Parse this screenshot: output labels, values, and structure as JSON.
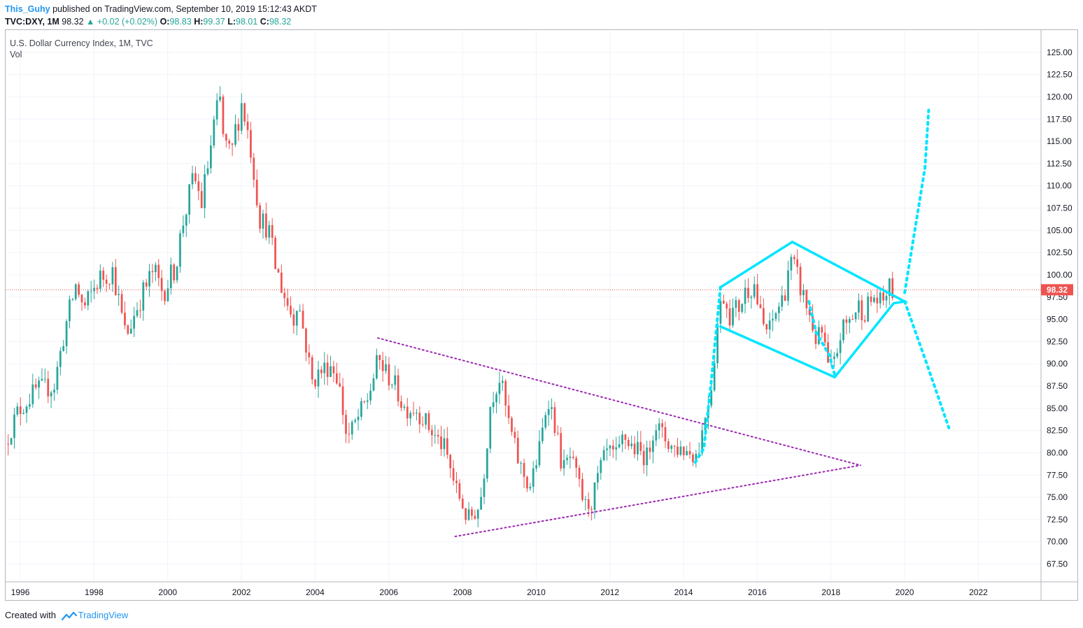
{
  "header": {
    "author": "This_Guhy",
    "published": "published on TradingView.com, September 10, 2019 15:12:43 AKDT",
    "symbol": "TVC:DXY, 1M",
    "price": "98.32",
    "change_arrow": "▲",
    "change": "+0.02 (+0.02%)",
    "o_label": "O:",
    "o_value": "98.83",
    "h_label": "H:",
    "h_value": "99.37",
    "l_label": "L:",
    "l_value": "98.01",
    "c_label": "C:",
    "c_value": "98.32"
  },
  "footer": {
    "created": "Created with",
    "brand": "TradingView"
  },
  "colors": {
    "up": "#26a69a",
    "down": "#ef5350",
    "pattern": "#00e5ff",
    "trend": "#9c27b0",
    "last": "#ef5350",
    "accent": "#2196f3"
  },
  "chart_data": {
    "type": "candlestick",
    "title": "U.S. Dollar Currency Index, 1M, TVC",
    "subtitle": "Vol",
    "last_price": 98.32,
    "last_price_label": "98.32",
    "xlim": [
      1995.6,
      2023.7
    ],
    "ylim": [
      65.5,
      127.5
    ],
    "x_ticks": [
      {
        "v": 1996,
        "label": "1996"
      },
      {
        "v": 1998,
        "label": "1998"
      },
      {
        "v": 2000,
        "label": "2000"
      },
      {
        "v": 2002,
        "label": "2002"
      },
      {
        "v": 2004,
        "label": "2004"
      },
      {
        "v": 2006,
        "label": "2006"
      },
      {
        "v": 2008,
        "label": "2008"
      },
      {
        "v": 2010,
        "label": "2010"
      },
      {
        "v": 2012,
        "label": "2012"
      },
      {
        "v": 2014,
        "label": "2014"
      },
      {
        "v": 2016,
        "label": "2016"
      },
      {
        "v": 2018,
        "label": "2018"
      },
      {
        "v": 2020,
        "label": "2020"
      },
      {
        "v": 2022,
        "label": "2022"
      }
    ],
    "y_ticks": [
      {
        "v": 67.5,
        "label": "67.50"
      },
      {
        "v": 70,
        "label": "70.00"
      },
      {
        "v": 72.5,
        "label": "72.50"
      },
      {
        "v": 75,
        "label": "75.00"
      },
      {
        "v": 77.5,
        "label": "77.50"
      },
      {
        "v": 80,
        "label": "80.00"
      },
      {
        "v": 82.5,
        "label": "82.50"
      },
      {
        "v": 85,
        "label": "85.00"
      },
      {
        "v": 87.5,
        "label": "87.50"
      },
      {
        "v": 90,
        "label": "90.00"
      },
      {
        "v": 92.5,
        "label": "92.50"
      },
      {
        "v": 95,
        "label": "95.00"
      },
      {
        "v": 97.5,
        "label": "97.50"
      },
      {
        "v": 100,
        "label": "100.00"
      },
      {
        "v": 102.5,
        "label": "102.50"
      },
      {
        "v": 105,
        "label": "105.00"
      },
      {
        "v": 107.5,
        "label": "107.50"
      },
      {
        "v": 110,
        "label": "110.00"
      },
      {
        "v": 112.5,
        "label": "112.50"
      },
      {
        "v": 115,
        "label": "115.00"
      },
      {
        "v": 117.5,
        "label": "117.50"
      },
      {
        "v": 120,
        "label": "120.00"
      },
      {
        "v": 122.5,
        "label": "122.50"
      },
      {
        "v": 125,
        "label": "125.00"
      }
    ],
    "grid": true,
    "price_path": [
      [
        1995.67,
        81.0
      ],
      [
        1996.0,
        84.5
      ],
      [
        1996.5,
        87.0
      ],
      [
        1997.0,
        87.5
      ],
      [
        1997.3,
        94.0
      ],
      [
        1997.6,
        99.0
      ],
      [
        1997.8,
        96.0
      ],
      [
        1998.2,
        99.5
      ],
      [
        1998.6,
        100.5
      ],
      [
        1998.8,
        96.0
      ],
      [
        1998.95,
        93.0
      ],
      [
        1999.3,
        97.0
      ],
      [
        1999.7,
        100.5
      ],
      [
        1999.95,
        98.0
      ],
      [
        2000.3,
        101.0
      ],
      [
        2000.5,
        106.0
      ],
      [
        2000.8,
        111.0
      ],
      [
        2001.0,
        108.0
      ],
      [
        2001.2,
        113.0
      ],
      [
        2001.35,
        117.0
      ],
      [
        2001.5,
        119.5
      ],
      [
        2001.6,
        115.0
      ],
      [
        2001.8,
        113.0
      ],
      [
        2001.95,
        117.0
      ],
      [
        2002.1,
        119.5
      ],
      [
        2002.35,
        114.0
      ],
      [
        2002.6,
        106.0
      ],
      [
        2002.8,
        105.5
      ],
      [
        2003.0,
        101.0
      ],
      [
        2003.3,
        97.0
      ],
      [
        2003.5,
        95.0
      ],
      [
        2003.6,
        97.5
      ],
      [
        2003.8,
        93.0
      ],
      [
        2004.0,
        88.0
      ],
      [
        2004.2,
        89.0
      ],
      [
        2004.5,
        90.0
      ],
      [
        2004.7,
        88.5
      ],
      [
        2004.95,
        81.5
      ],
      [
        2005.2,
        83.5
      ],
      [
        2005.5,
        86.0
      ],
      [
        2005.8,
        90.5
      ],
      [
        2006.0,
        89.0
      ],
      [
        2006.2,
        88.0
      ],
      [
        2006.5,
        85.0
      ],
      [
        2006.8,
        85.0
      ],
      [
        2007.0,
        84.0
      ],
      [
        2007.3,
        82.0
      ],
      [
        2007.6,
        80.5
      ],
      [
        2007.9,
        76.0
      ],
      [
        2008.1,
        74.0
      ],
      [
        2008.2,
        72.5
      ],
      [
        2008.35,
        73.0
      ],
      [
        2008.55,
        74.0
      ],
      [
        2008.7,
        79.0
      ],
      [
        2008.85,
        86.0
      ],
      [
        2009.1,
        88.5
      ],
      [
        2009.3,
        84.0
      ],
      [
        2009.6,
        79.0
      ],
      [
        2009.9,
        76.0
      ],
      [
        2010.0,
        77.5
      ],
      [
        2010.2,
        81.0
      ],
      [
        2010.4,
        86.5
      ],
      [
        2010.6,
        83.0
      ],
      [
        2010.8,
        78.0
      ],
      [
        2011.0,
        79.5
      ],
      [
        2011.2,
        77.0
      ],
      [
        2011.4,
        74.0
      ],
      [
        2011.6,
        74.5
      ],
      [
        2011.8,
        78.0
      ],
      [
        2012.0,
        80.0
      ],
      [
        2012.3,
        79.5
      ],
      [
        2012.45,
        82.0
      ],
      [
        2012.6,
        81.0
      ],
      [
        2012.9,
        80.0
      ],
      [
        2013.1,
        79.5
      ],
      [
        2013.3,
        83.5
      ],
      [
        2013.5,
        82.0
      ],
      [
        2013.8,
        80.5
      ],
      [
        2014.0,
        80.5
      ],
      [
        2014.3,
        80.0
      ],
      [
        2014.45,
        79.8
      ],
      [
        2014.55,
        81.5
      ],
      [
        2014.7,
        85.0
      ],
      [
        2014.85,
        88.0
      ],
      [
        2015.0,
        94.5
      ],
      [
        2015.15,
        98.0
      ],
      [
        2015.35,
        95.5
      ],
      [
        2015.6,
        96.5
      ],
      [
        2015.8,
        98.5
      ],
      [
        2016.0,
        99.0
      ],
      [
        2016.2,
        94.5
      ],
      [
        2016.4,
        93.5
      ],
      [
        2016.6,
        96.0
      ],
      [
        2016.8,
        97.5
      ],
      [
        2016.95,
        101.5
      ],
      [
        2017.1,
        100.5
      ],
      [
        2017.3,
        98.0
      ],
      [
        2017.5,
        95.5
      ],
      [
        2017.7,
        92.5
      ],
      [
        2017.85,
        93.5
      ],
      [
        2018.0,
        89.5
      ],
      [
        2018.15,
        89.5
      ],
      [
        2018.35,
        93.5
      ],
      [
        2018.6,
        95.0
      ],
      [
        2018.85,
        96.5
      ],
      [
        2019.0,
        96.0
      ],
      [
        2019.25,
        97.5
      ],
      [
        2019.45,
        96.5
      ],
      [
        2019.6,
        98.3
      ],
      [
        2019.7,
        98.32
      ]
    ],
    "drawings": [
      {
        "name": "triangle-upper-trendline",
        "style": "dotted",
        "color": "trend",
        "points": [
          [
            2005.7,
            92.9
          ],
          [
            2018.8,
            78.6
          ]
        ]
      },
      {
        "name": "triangle-lower-trendline",
        "style": "dotted",
        "color": "trend",
        "points": [
          [
            2007.8,
            70.6
          ],
          [
            2018.8,
            78.6
          ]
        ]
      },
      {
        "name": "diamond-pattern",
        "style": "solid",
        "color": "pattern",
        "points": [
          [
            2015.0,
            98.6
          ],
          [
            2016.95,
            103.7
          ],
          [
            2020.0,
            97.0
          ],
          [
            2019.7,
            96.8
          ],
          [
            2018.1,
            88.5
          ],
          [
            2015.0,
            94.2
          ]
        ]
      },
      {
        "name": "breakout-projection-up",
        "style": "dotted",
        "color": "pattern",
        "points": [
          [
            2015.0,
            98.6
          ],
          [
            2014.75,
            88.0
          ],
          [
            2014.55,
            80.5
          ],
          [
            2014.3,
            78.8
          ]
        ]
      },
      {
        "name": "diamond-inner-dotted",
        "style": "dotted",
        "color": "pattern",
        "points": [
          [
            2017.4,
            97.0
          ],
          [
            2017.6,
            93.5
          ],
          [
            2017.95,
            91.0
          ],
          [
            2018.1,
            88.8
          ]
        ]
      },
      {
        "name": "target-up-projection",
        "style": "dotted",
        "color": "pattern",
        "points": [
          [
            2020.0,
            98.0
          ],
          [
            2020.55,
            112.0
          ],
          [
            2020.65,
            118.5
          ]
        ]
      },
      {
        "name": "target-down-projection",
        "style": "dotted",
        "color": "pattern",
        "points": [
          [
            2020.0,
            97.0
          ],
          [
            2020.6,
            90.0
          ],
          [
            2021.2,
            82.8
          ]
        ]
      }
    ]
  }
}
